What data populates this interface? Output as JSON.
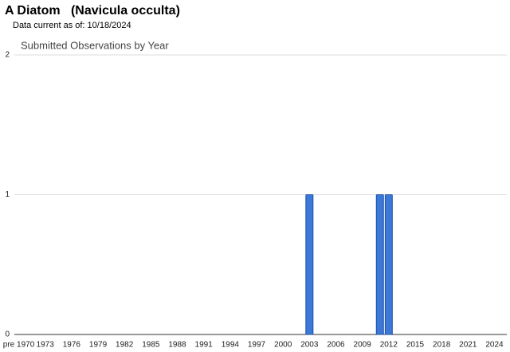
{
  "chart_data": {
    "type": "bar",
    "title": "A Diatom   (Navicula occulta)",
    "subtitle": "Data current as of: 10/18/2024",
    "chart_title": "Submitted Observations by Year",
    "categories": [
      "pre 1970",
      null,
      null,
      "1973",
      null,
      null,
      "1976",
      null,
      null,
      "1979",
      null,
      null,
      "1982",
      null,
      null,
      "1985",
      null,
      null,
      "1988",
      null,
      null,
      "1991",
      null,
      null,
      "1994",
      null,
      null,
      "1997",
      null,
      null,
      "2000",
      null,
      null,
      "2003",
      null,
      null,
      "2006",
      null,
      null,
      "2009",
      null,
      null,
      "2012",
      null,
      null,
      "2015",
      null,
      null,
      "2018",
      null,
      null,
      "2021",
      null,
      null,
      "2024"
    ],
    "values": [
      0,
      0,
      0,
      0,
      0,
      0,
      0,
      0,
      0,
      0,
      0,
      0,
      0,
      0,
      0,
      0,
      0,
      0,
      0,
      0,
      0,
      0,
      0,
      0,
      0,
      0,
      0,
      0,
      0,
      0,
      0,
      0,
      0,
      1,
      0,
      0,
      0,
      0,
      0,
      0,
      0,
      1,
      1,
      0,
      0,
      0,
      0,
      0,
      0,
      0,
      0,
      0,
      0,
      0,
      0
    ],
    "color": "#3c78d8",
    "ylim": [
      0,
      2
    ],
    "yticks": [
      0,
      1,
      2
    ],
    "grid": true
  }
}
